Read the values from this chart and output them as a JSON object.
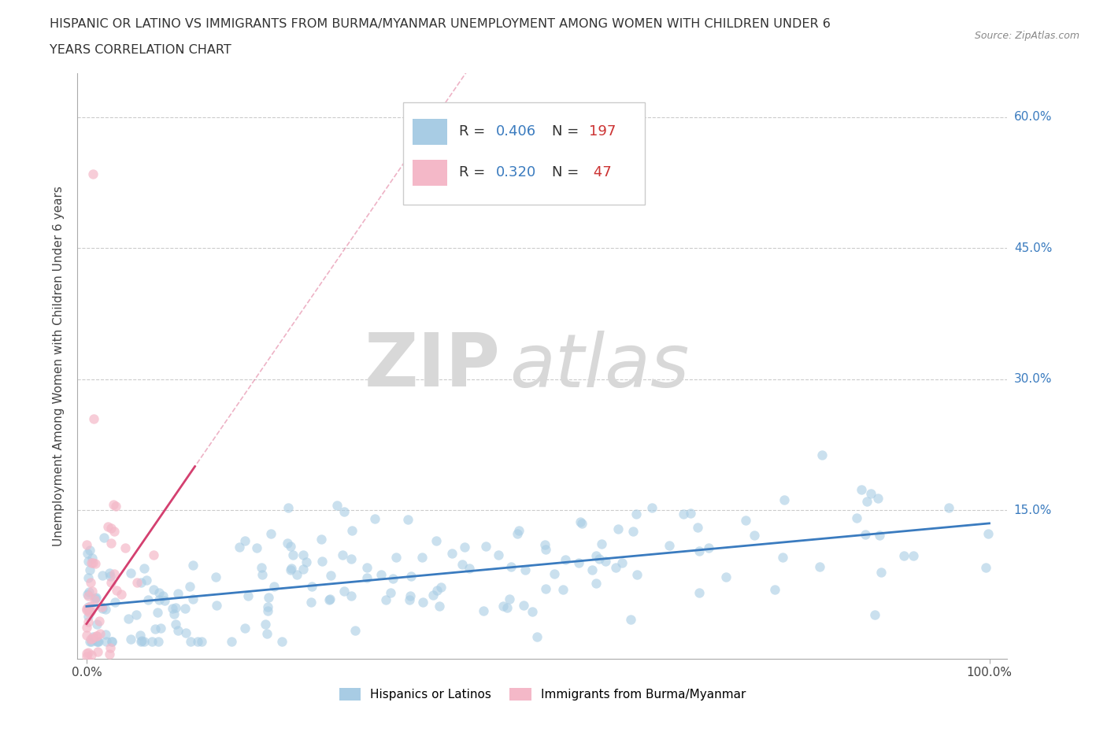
{
  "title_line1": "HISPANIC OR LATINO VS IMMIGRANTS FROM BURMA/MYANMAR UNEMPLOYMENT AMONG WOMEN WITH CHILDREN UNDER 6",
  "title_line2": "YEARS CORRELATION CHART",
  "source": "Source: ZipAtlas.com",
  "ylabel": "Unemployment Among Women with Children Under 6 years",
  "ytick_labels": [
    "15.0%",
    "30.0%",
    "45.0%",
    "60.0%"
  ],
  "ytick_values": [
    0.15,
    0.3,
    0.45,
    0.6
  ],
  "watermark_zip": "ZIP",
  "watermark_atlas": "atlas",
  "legend_r1_text": "R = ",
  "legend_r1_val": "0.406",
  "legend_n1_text": "N = ",
  "legend_n1_val": "197",
  "legend_r2_text": "R = ",
  "legend_r2_val": "0.320",
  "legend_n2_text": "N = ",
  "legend_n2_val": " 47",
  "color_blue": "#a8cce4",
  "color_pink": "#f4b8c8",
  "line_color_blue": "#3a7bbf",
  "line_color_pink": "#d44070",
  "label_blue": "Hispanics or Latinos",
  "label_pink": "Immigrants from Burma/Myanmar",
  "r_color": "#3a7bbf",
  "n_color": "#cc3333",
  "xmin": 0.0,
  "xmax": 1.0,
  "ymin": -0.02,
  "ymax": 0.65,
  "blue_trend_x": [
    0.0,
    1.0
  ],
  "blue_trend_y": [
    0.04,
    0.135
  ],
  "pink_trend_x": [
    0.0,
    0.12
  ],
  "pink_trend_y": [
    0.02,
    0.2
  ]
}
